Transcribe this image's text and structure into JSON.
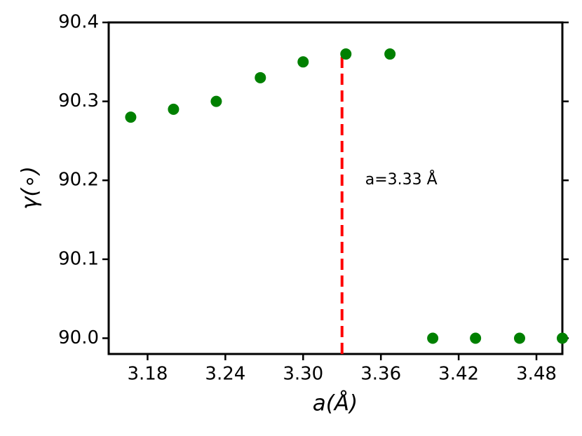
{
  "chart_data": {
    "type": "scatter",
    "x_label": "a(Å)",
    "y_label": "γ(∘)",
    "x": [
      3.167,
      3.2,
      3.233,
      3.267,
      3.3,
      3.333,
      3.367,
      3.4,
      3.433,
      3.467,
      3.5
    ],
    "series": [
      {
        "color": "#008000",
        "values": [
          90.28,
          90.29,
          90.3,
          90.33,
          90.35,
          90.36,
          90.36,
          90.0,
          90.0,
          90.0,
          90.0
        ]
      }
    ],
    "xlim": [
      3.15,
      3.5
    ],
    "xticks": [
      3.18,
      3.24,
      {
        "value": 3.3,
        "label": "3.30"
      },
      3.36,
      3.42,
      3.48
    ],
    "ylim": [
      89.98,
      90.4
    ],
    "yticks": [
      {
        "value": 90.0,
        "label": "90.0"
      },
      90.1,
      90.2,
      90.3,
      90.4
    ],
    "grid": false,
    "vline": {
      "x": 3.33,
      "ymax": 90.36,
      "color": "#ff0000",
      "text": "a=3.33 Å"
    }
  }
}
